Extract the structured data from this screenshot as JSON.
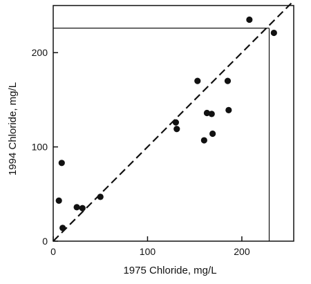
{
  "chart_data": {
    "type": "scatter",
    "xlabel": "1975 Chloride, mg/L",
    "ylabel": "1994 Chloride, mg/L",
    "xlim": [
      0,
      255
    ],
    "ylim": [
      0,
      250
    ],
    "x_ticks": [
      0,
      100,
      200
    ],
    "y_ticks": [
      0,
      100,
      200
    ],
    "tick_labels_x": [
      "0",
      "100",
      "200"
    ],
    "tick_labels_y": [
      "0",
      "100",
      "200"
    ],
    "grid": false,
    "reference_line": {
      "type": "1:1",
      "style": "dashed",
      "from": [
        0,
        0
      ],
      "to": [
        255,
        255
      ]
    },
    "reference_box": {
      "x": 229,
      "y": 226
    },
    "x": [
      6,
      9,
      10,
      25,
      31,
      50,
      130,
      131,
      153,
      160,
      163,
      168,
      169,
      185,
      186,
      208,
      234
    ],
    "y": [
      43,
      83,
      14,
      36,
      35,
      47,
      126,
      119,
      170,
      107,
      136,
      135,
      114,
      170,
      139,
      235,
      221
    ],
    "colors": {
      "points": "#111111",
      "axes": "#111111",
      "background": "#ffffff"
    }
  }
}
